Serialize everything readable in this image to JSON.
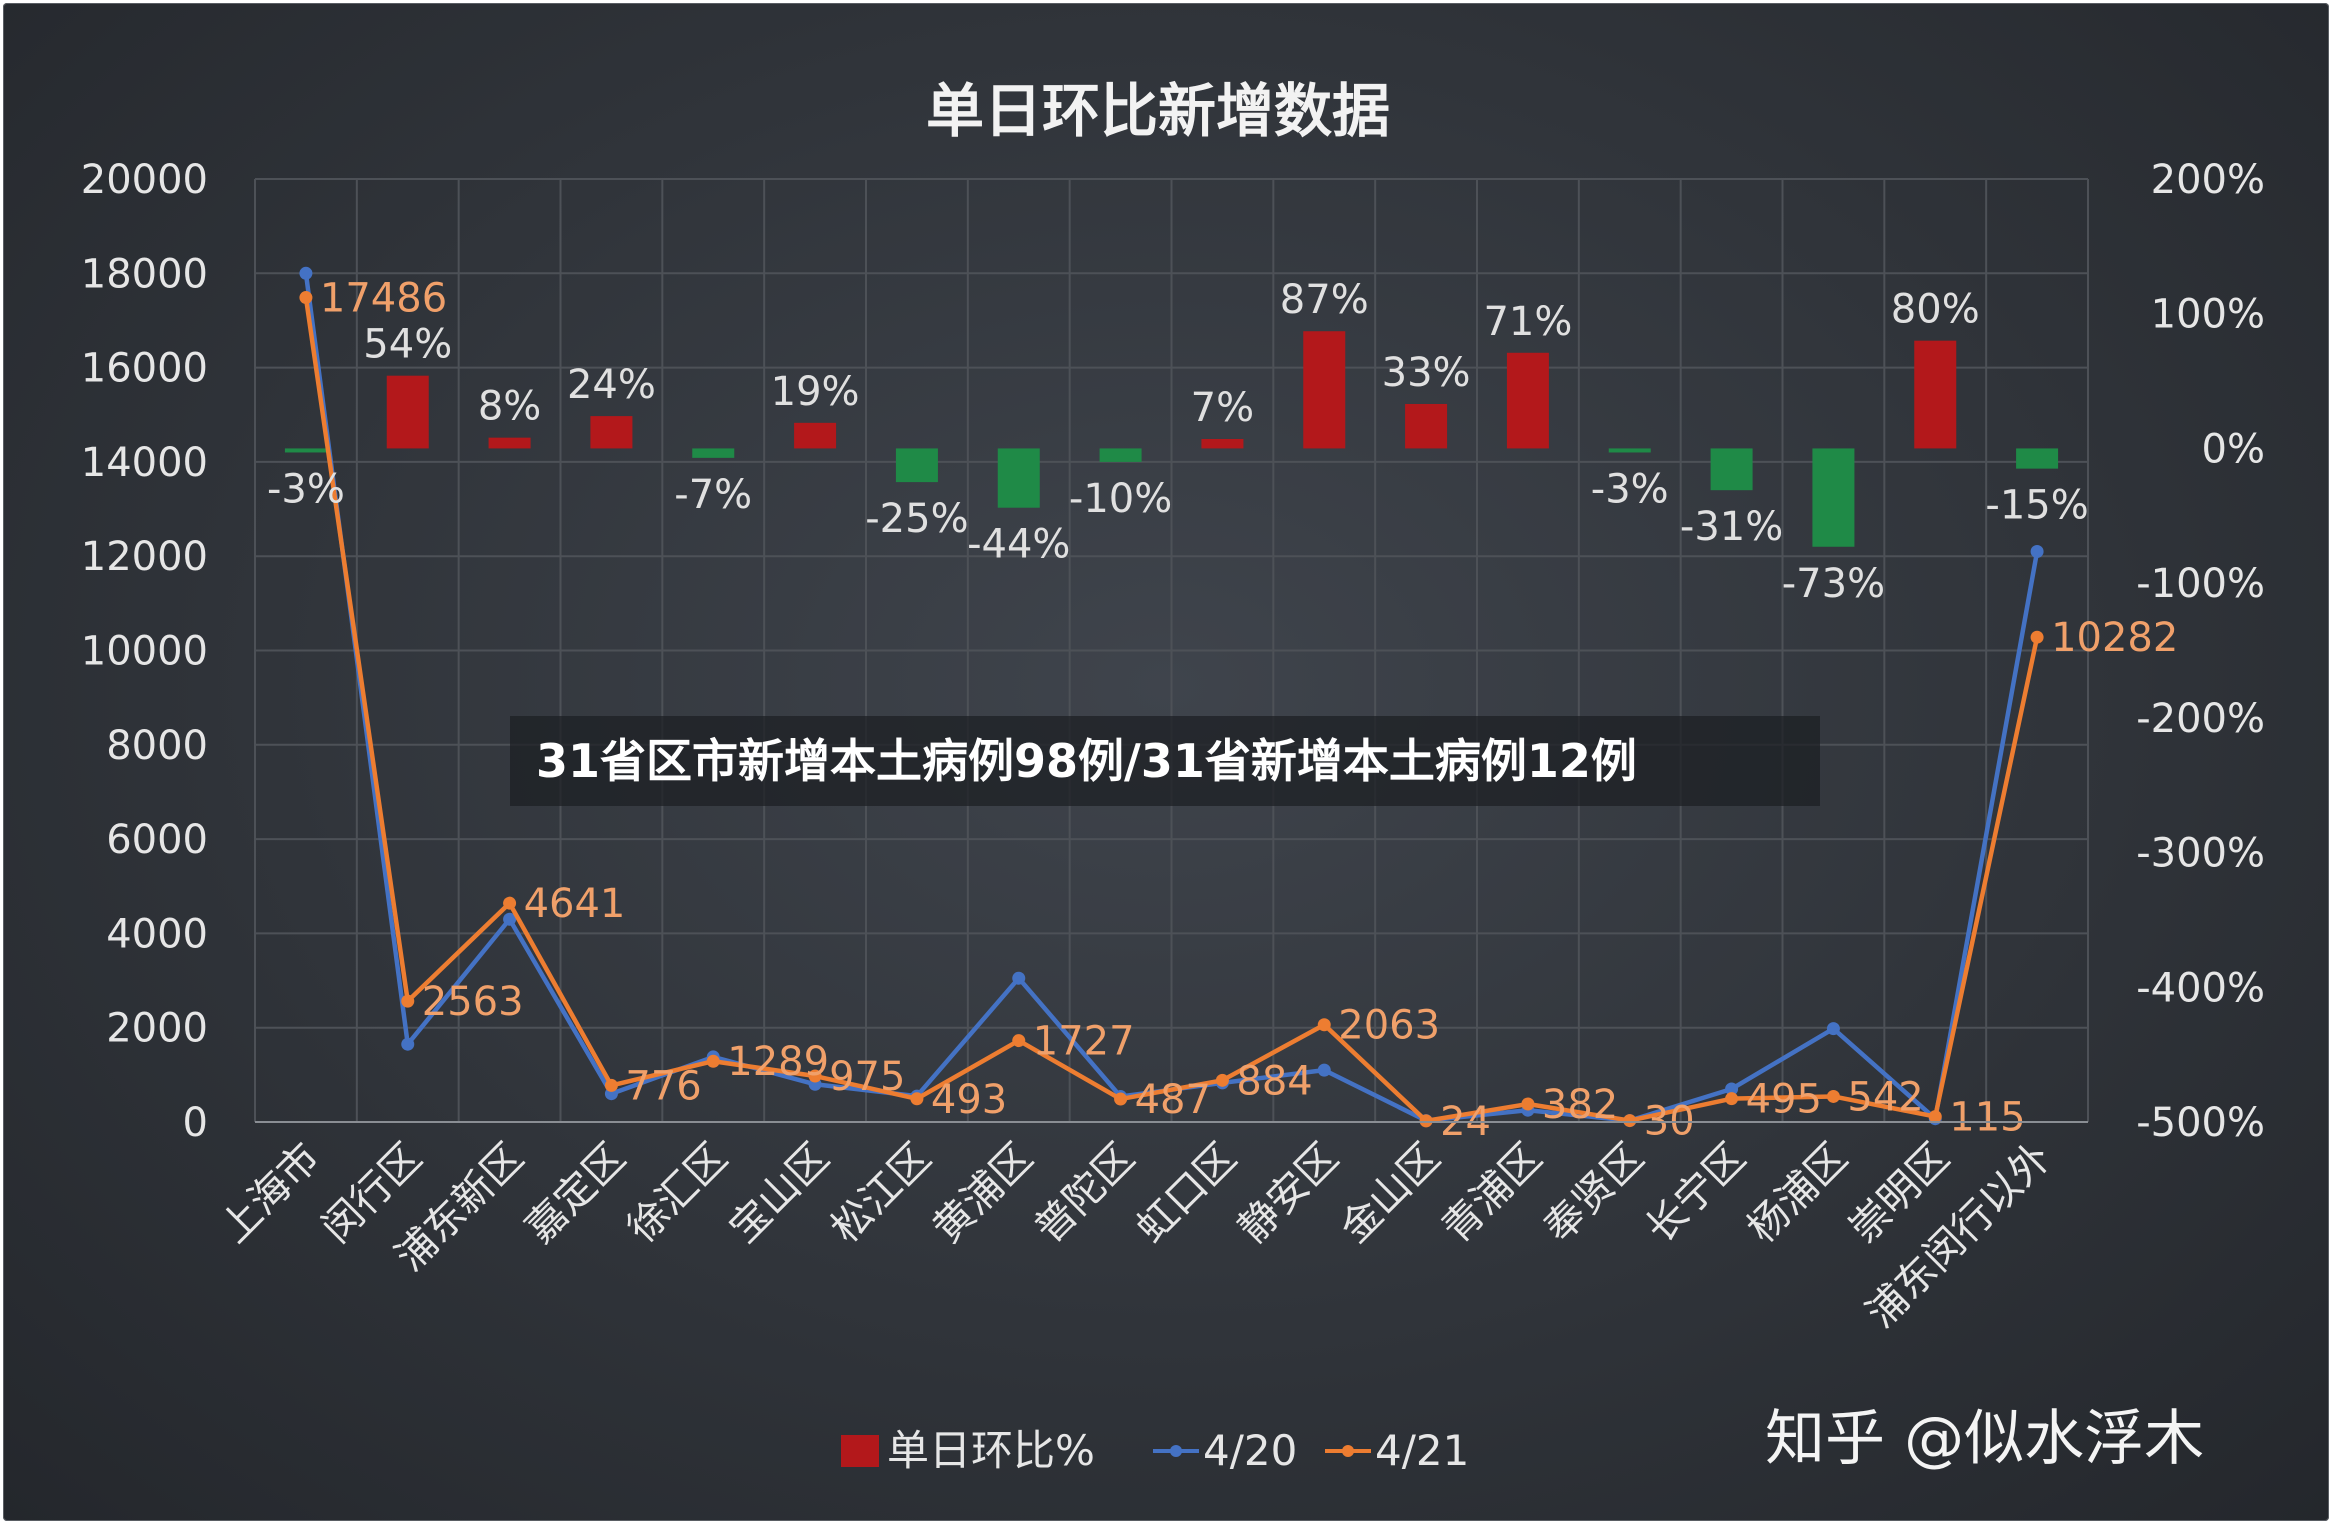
{
  "banner": "31省区市新增本土病例98例/31省新增本土病例12例",
  "watermark": "知乎 @似水浮木",
  "colors": {
    "bar_pos": "#b3181b",
    "bar_neg": "#1f8a47",
    "line_420": "#4472c4",
    "line_421": "#ed7d31",
    "grid": "#4d5157",
    "text": "#e6e6e6"
  },
  "chart_data": {
    "type": "bar+line",
    "title": "单日环比新增数据",
    "categories": [
      "上海市",
      "闵行区",
      "浦东新区",
      "嘉定区",
      "徐汇区",
      "宝山区",
      "松江区",
      "黄浦区",
      "普陀区",
      "虹口区",
      "静安区",
      "金山区",
      "青浦区",
      "奉贤区",
      "长宁区",
      "杨浦区",
      "崇明区",
      "浦东闵行以外"
    ],
    "left_axis": {
      "min": 0,
      "max": 20000,
      "ticks": [
        "0",
        "2000",
        "4000",
        "6000",
        "8000",
        "10000",
        "12000",
        "14000",
        "16000",
        "18000",
        "20000"
      ]
    },
    "right_axis": {
      "min": -500,
      "max": 200,
      "ticks": [
        "-500%",
        "-400%",
        "-300%",
        "-200%",
        "-100%",
        "0%",
        "100%",
        "200%"
      ]
    },
    "bars": {
      "name": "单日环比%",
      "axis": "right",
      "values": [
        -3,
        54,
        8,
        24,
        -7,
        19,
        -25,
        -44,
        -10,
        7,
        87,
        33,
        71,
        -3,
        -31,
        -73,
        80,
        -15
      ],
      "labels": [
        "-3%",
        "54%",
        "8%",
        "24%",
        "-7%",
        "19%",
        "-25%",
        "-44%",
        "-10%",
        "7%",
        "87%",
        "33%",
        "71%",
        "-3%",
        "-31%",
        "-73%",
        "80%",
        "-15%"
      ]
    },
    "series": [
      {
        "name": "4/20",
        "axis": "left",
        "values": [
          18000,
          1650,
          4300,
          600,
          1380,
          800,
          550,
          3050,
          540,
          830,
          1100,
          30,
          250,
          30,
          700,
          1980,
          70,
          12100
        ]
      },
      {
        "name": "4/21",
        "axis": "left",
        "values": [
          17486,
          2563,
          4641,
          776,
          1289,
          975,
          493,
          1727,
          487,
          884,
          2063,
          24,
          382,
          30,
          495,
          542,
          115,
          10282
        ],
        "labels": [
          "17486",
          "2563",
          "4641",
          "776",
          "1289",
          "975",
          "493",
          "1727",
          "487",
          "884",
          "2063",
          "24",
          "382",
          "30",
          "495",
          "542",
          "115",
          "10282"
        ]
      }
    ],
    "legend": {
      "position": "bottom",
      "items": [
        "单日环比%",
        "4/20",
        "4/21"
      ]
    },
    "grid": true
  }
}
